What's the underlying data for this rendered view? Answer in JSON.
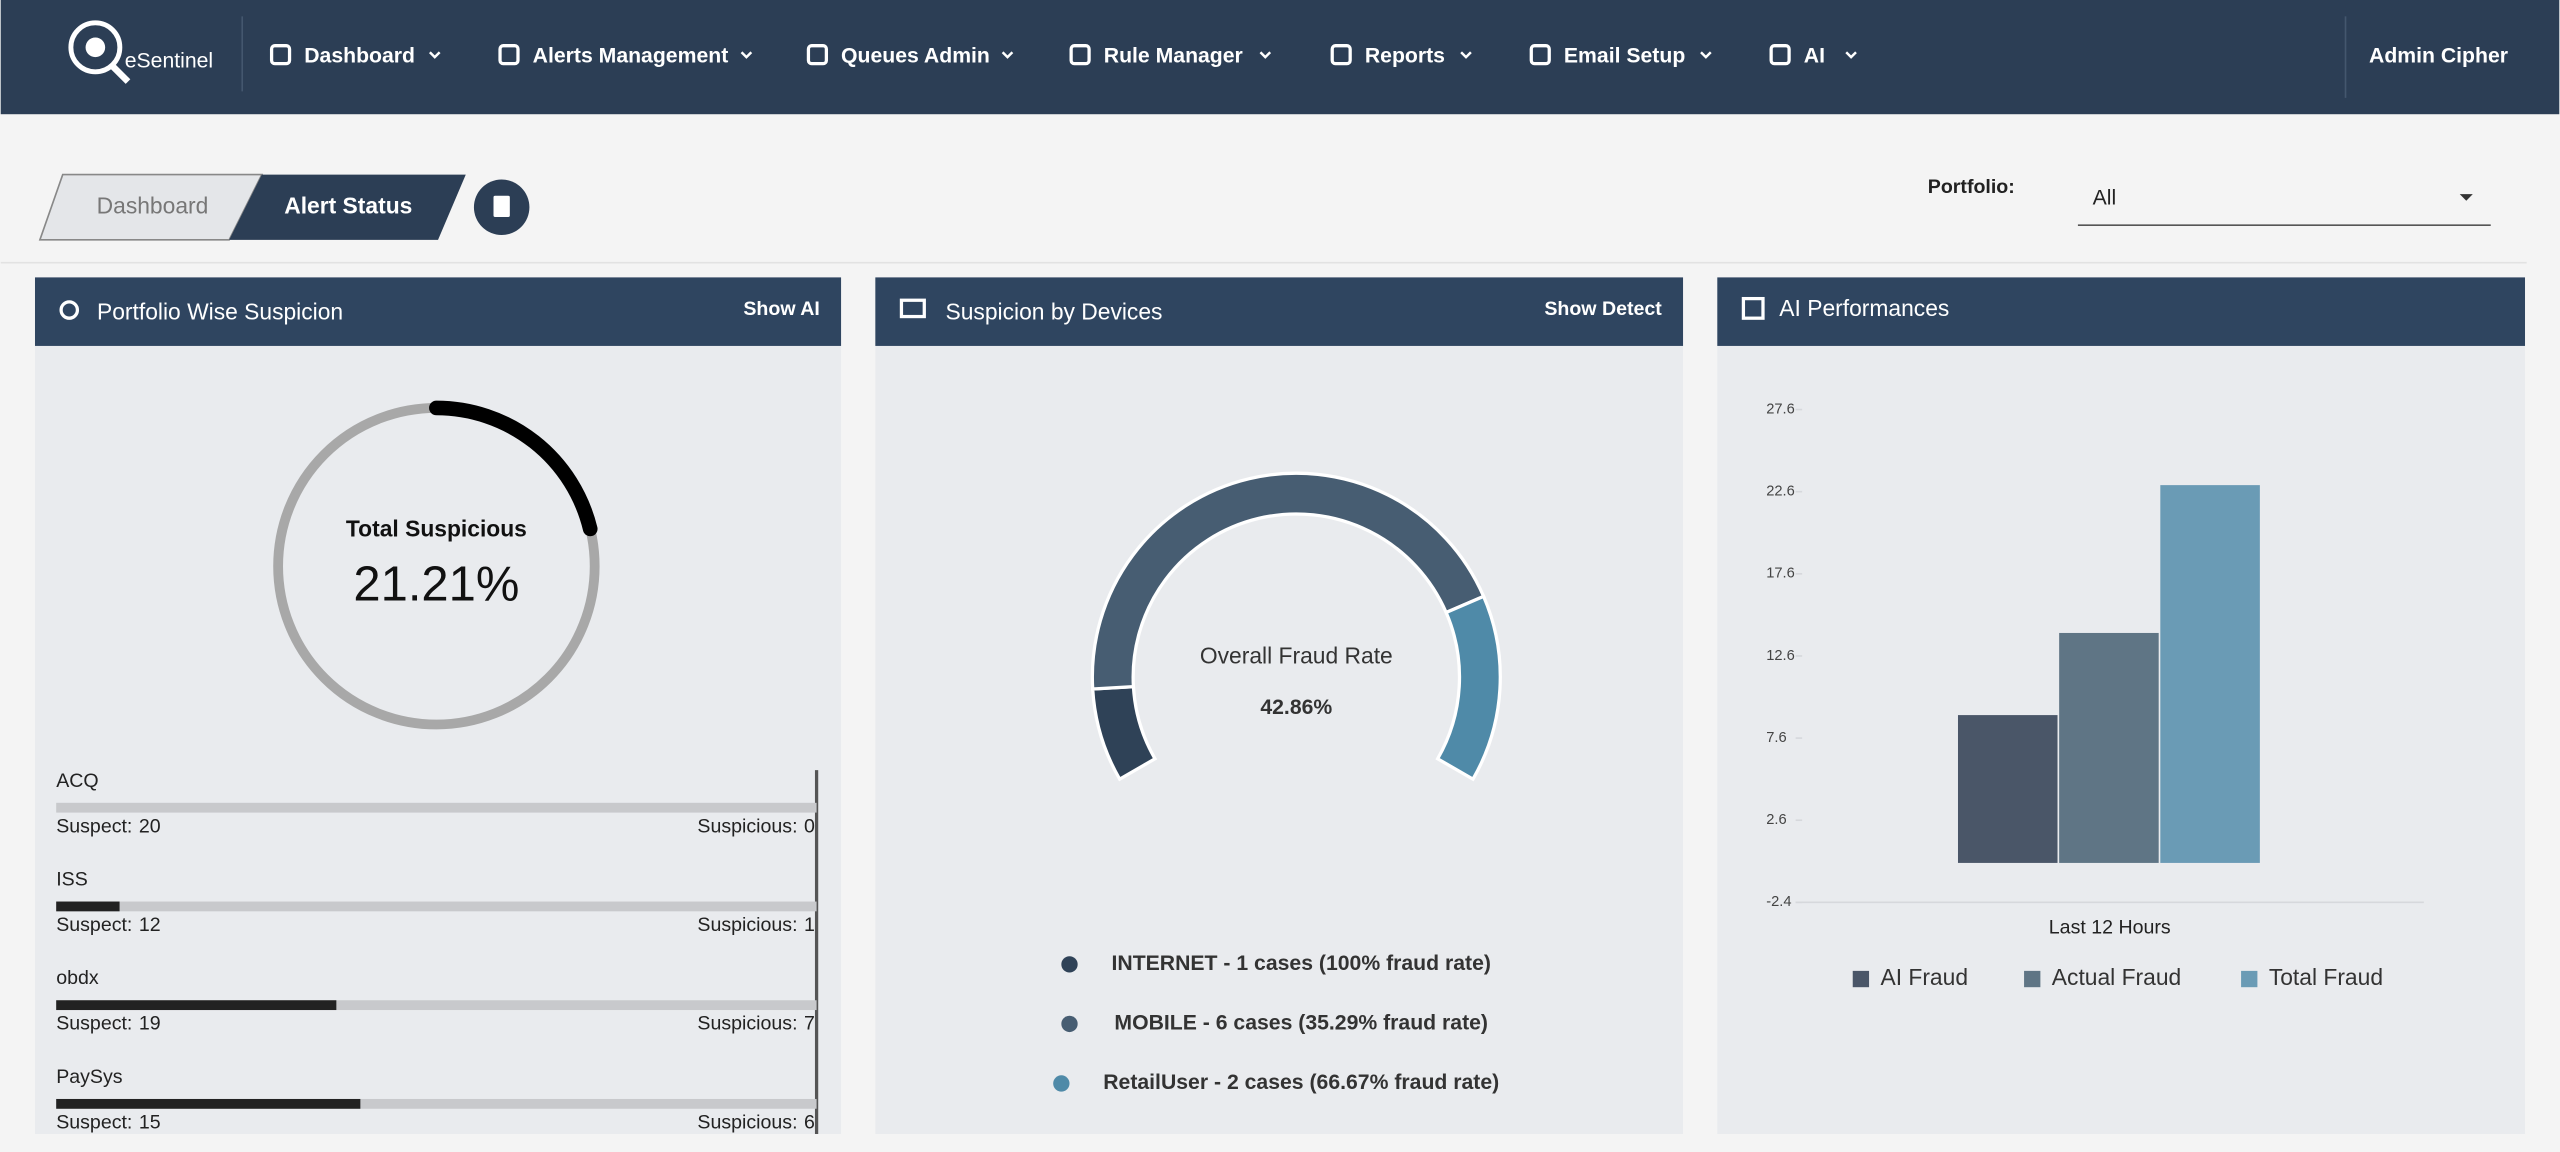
{
  "nav": {
    "brand": "eSentinel",
    "items": [
      "Dashboard",
      "Alerts Management",
      "Queues Admin",
      "Rule Manager",
      "Reports",
      "Email Setup",
      "AI"
    ],
    "user": "Admin Cipher"
  },
  "breadcrumb": [
    "Dashboard",
    "Alert Status"
  ],
  "filter": {
    "label": "Portfolio:",
    "value": "All"
  },
  "portfolio": {
    "title": "Portfolio Wise Suspicion",
    "action": "Show AI",
    "gauge_label": "Total Suspicious",
    "total": 21.21,
    "total_label": "21.21%",
    "suspect_label": "Suspect:",
    "suspicious_label": "Suspicious:",
    "rows": [
      {
        "name": "ACQ",
        "suspect": 20,
        "suspicious": 0
      },
      {
        "name": "ISS",
        "suspect": 12,
        "suspicious": 1
      },
      {
        "name": "obdx",
        "suspect": 19,
        "suspicious": 7
      },
      {
        "name": "PaySys",
        "suspect": 15,
        "suspicious": 6
      }
    ]
  },
  "devices": {
    "title": "Suspicion by Devices",
    "action": "Show Detect",
    "center_label": "Overall Fraud Rate",
    "rate": 42.86,
    "rate_label": "42.86%",
    "values": [
      1,
      6,
      2
    ],
    "colors": [
      "#2f4257",
      "#475d72",
      "#4f8aa8"
    ],
    "value_labels": [
      "INTERNET - 1 cases (100% fraud rate)",
      "MOBILE - 6 cases (35.29% fraud rate)",
      "RetailUser - 2 cases (66.67% fraud rate)"
    ]
  },
  "chart_data": {
    "type": "bar",
    "title": "AI Performances",
    "categories": [
      "Last 12 Hours"
    ],
    "series": [
      {
        "name": "AI Fraud",
        "color": "#4a5668",
        "values": [
          9
        ]
      },
      {
        "name": "Actual Fraud",
        "color": "#5f7585",
        "values": [
          14
        ]
      },
      {
        "name": "Total Fraud",
        "color": "#6a9bb5",
        "values": [
          23
        ]
      }
    ],
    "ylim": [
      -2.4,
      27.6
    ],
    "yticks": [
      -2.4,
      2.6,
      7.6,
      12.6,
      17.6,
      22.6,
      27.6
    ],
    "legend": "bottom"
  }
}
